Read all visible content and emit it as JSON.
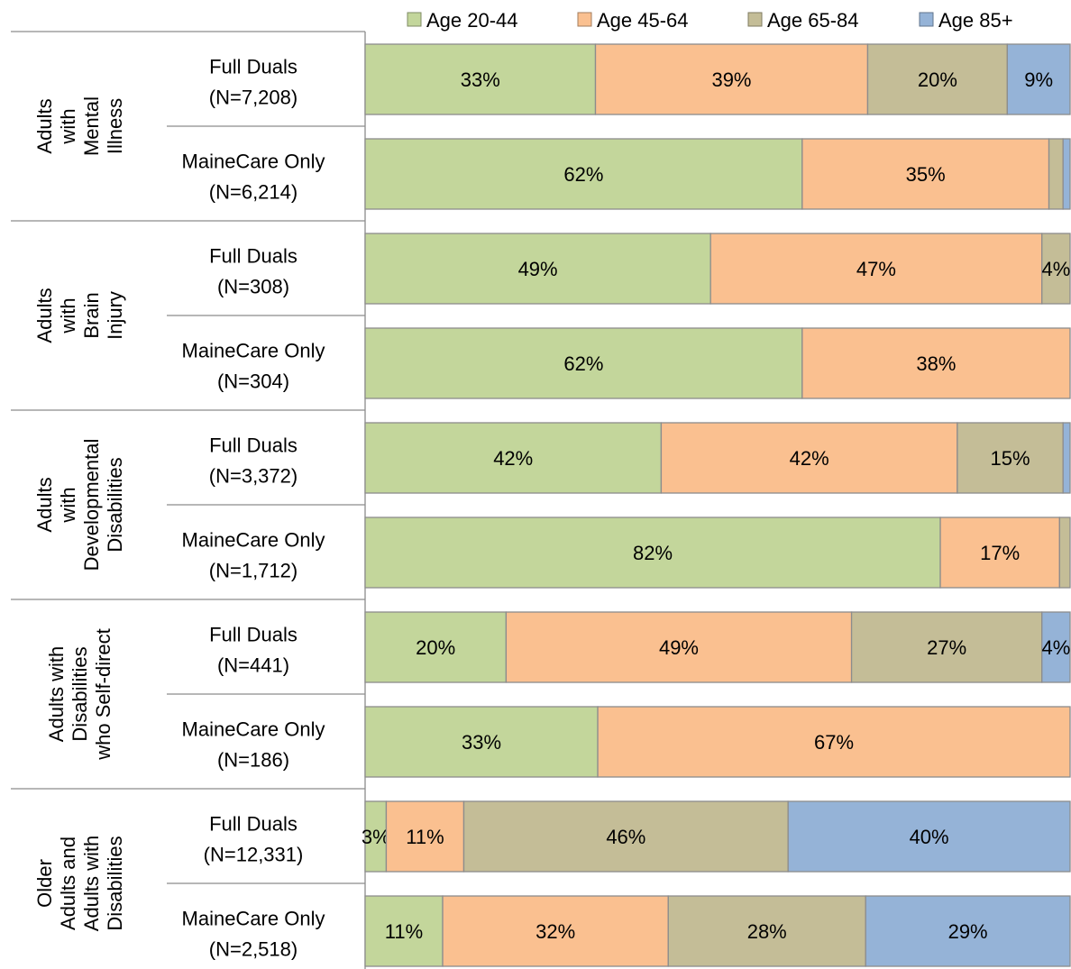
{
  "chart_data": {
    "type": "bar",
    "orientation": "horizontal",
    "stacked": true,
    "normalized_percent": true,
    "legend": {
      "placement": "top",
      "entries": [
        {
          "label": "Age 20-44",
          "color": "#c3d69b"
        },
        {
          "label": "Age 45-64",
          "color": "#fac090"
        },
        {
          "label": "Age 65-84",
          "color": "#c4bd97"
        },
        {
          "label": "Age 85+",
          "color": "#95b3d7"
        }
      ]
    },
    "groups": [
      {
        "label": [
          "Adults",
          "with",
          "Mental",
          "Illness"
        ],
        "bars": [
          {
            "label": [
              "Full Duals",
              "(N=7,208)"
            ],
            "values": [
              33,
              39,
              20,
              9
            ],
            "labels": [
              "33%",
              "39%",
              "20%",
              "9%"
            ]
          },
          {
            "label": [
              "MaineCare Only",
              "(N=6,214)"
            ],
            "values": [
              62,
              35,
              2,
              1
            ],
            "labels": [
              "62%",
              "35%",
              "",
              ""
            ]
          }
        ]
      },
      {
        "label": [
          "Adults",
          "with",
          "Brain",
          "Injury"
        ],
        "bars": [
          {
            "label": [
              "Full Duals",
              "(N=308)"
            ],
            "values": [
              49,
              47,
              4,
              0
            ],
            "labels": [
              "49%",
              "47%",
              "4%",
              ""
            ]
          },
          {
            "label": [
              "MaineCare Only",
              "(N=304)"
            ],
            "values": [
              62,
              38,
              0,
              0
            ],
            "labels": [
              "62%",
              "38%",
              "",
              ""
            ]
          }
        ]
      },
      {
        "label": [
          "Adults",
          "with",
          "Developmental",
          "Disabilities"
        ],
        "bars": [
          {
            "label": [
              "Full Duals",
              "(N=3,372)"
            ],
            "values": [
              42,
              42,
              15,
              1
            ],
            "labels": [
              "42%",
              "42%",
              "15%",
              ""
            ]
          },
          {
            "label": [
              "MaineCare Only",
              "(N=1,712)"
            ],
            "values": [
              82,
              17,
              1.5,
              0
            ],
            "labels": [
              "82%",
              "17%",
              "",
              ""
            ]
          }
        ]
      },
      {
        "label": [
          "Adults with",
          "Disabilities",
          "who Self-direct"
        ],
        "bars": [
          {
            "label": [
              "Full Duals",
              "(N=441)"
            ],
            "values": [
              20,
              49,
              27,
              4
            ],
            "labels": [
              "20%",
              "49%",
              "27%",
              "4%"
            ]
          },
          {
            "label": [
              "MaineCare Only",
              "(N=186)"
            ],
            "values": [
              33,
              67,
              0,
              0
            ],
            "labels": [
              "33%",
              "67%",
              "",
              ""
            ]
          }
        ]
      },
      {
        "label": [
          "Older",
          "Adults and",
          "Adults with",
          "Disabilities"
        ],
        "bars": [
          {
            "label": [
              "Full Duals",
              "(N=12,331)"
            ],
            "values": [
              3,
              11,
              46,
              40
            ],
            "labels": [
              "3%",
              "11%",
              "46%",
              "40%"
            ]
          },
          {
            "label": [
              "MaineCare Only",
              "(N=2,518)"
            ],
            "values": [
              11,
              32,
              28,
              29
            ],
            "labels": [
              "11%",
              "32%",
              "28%",
              "29%"
            ]
          }
        ]
      }
    ],
    "xlim": [
      0,
      100
    ],
    "grid": false
  }
}
